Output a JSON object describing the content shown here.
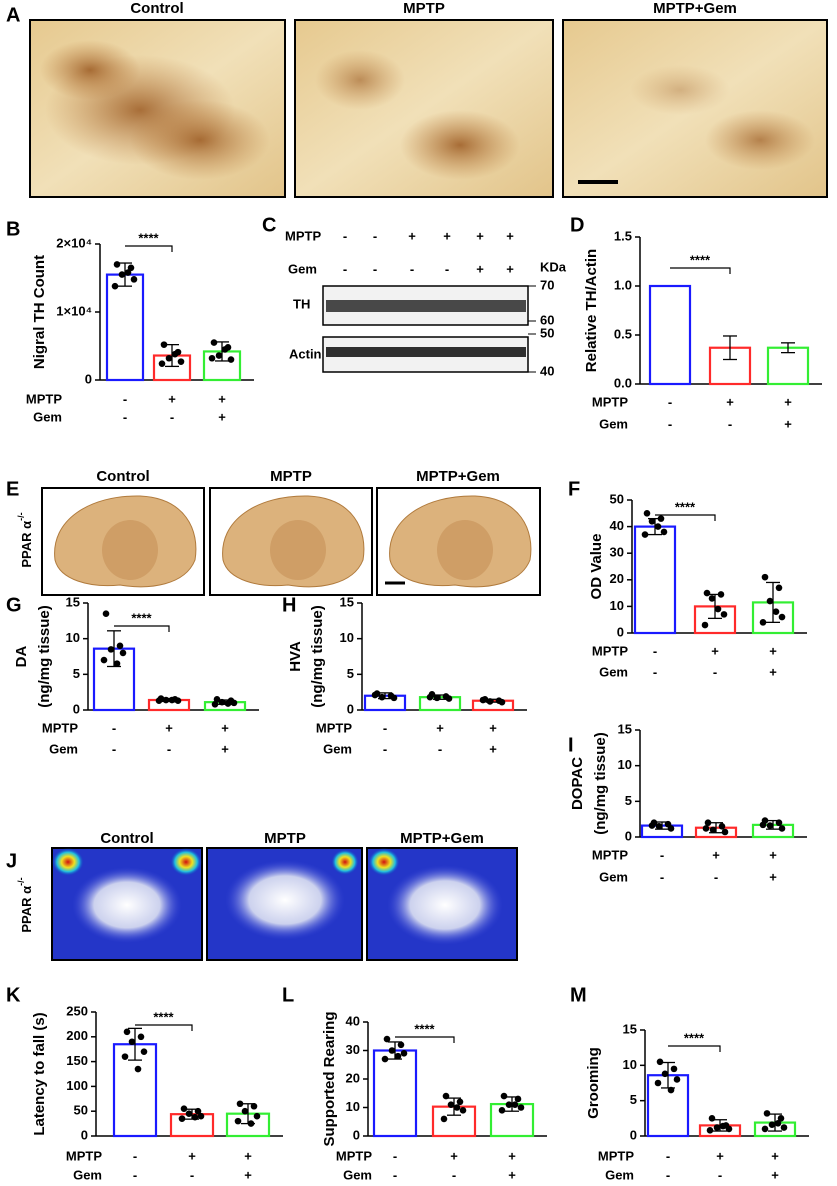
{
  "panel_letters": [
    "A",
    "B",
    "C",
    "D",
    "E",
    "F",
    "G",
    "H",
    "I",
    "J",
    "K",
    "L",
    "M"
  ],
  "images_a": {
    "titles": [
      "Control",
      "MPTP",
      "MPTP+Gem"
    ]
  },
  "images_e": {
    "titles": [
      "Control",
      "MPTP",
      "MPTP+Gem"
    ],
    "genotype": {
      "base": "PPAR α",
      "sup": "-/-"
    }
  },
  "images_j": {
    "titles": [
      "Control",
      "MPTP",
      "MPTP+Gem"
    ],
    "genotype": {
      "base": "PPAR α",
      "sup": "-/-"
    }
  },
  "blot": {
    "rows": [
      {
        "label": "MPTP",
        "signs": [
          "-",
          "-",
          "+",
          "+",
          "+",
          "+"
        ]
      },
      {
        "label": "Gem",
        "signs": [
          "-",
          "-",
          "-",
          "-",
          "+",
          "+"
        ]
      }
    ],
    "unit": "KDa",
    "bands": [
      "TH",
      "Actin"
    ],
    "markers": [
      "70",
      "60",
      "50",
      "40"
    ]
  },
  "chart_data": [
    {
      "type": "bar",
      "ylabel": [
        "Nigral TH Count"
      ],
      "ylim": [
        0,
        20000
      ],
      "yticks": [
        0,
        {
          "value": 10000,
          "label": "1×10⁴"
        },
        {
          "value": 20000,
          "label": "2×10⁴"
        }
      ],
      "values": [
        15500,
        3600,
        4200
      ],
      "errors": [
        1700,
        1600,
        1400
      ],
      "colors": [
        "#1a1aff",
        "#ff2a2a",
        "#33ee33"
      ],
      "points": [
        [
          17000,
          16500,
          15500,
          14800,
          13800,
          15800
        ],
        [
          5200,
          4100,
          3200,
          2700,
          2400,
          3800
        ],
        [
          5500,
          4800,
          3600,
          3000,
          3200,
          4500
        ]
      ],
      "significance": "****",
      "conditions": [
        {
          "name": "MPTP",
          "signs": [
            "-",
            "+",
            "+"
          ]
        },
        {
          "name": "Gem",
          "signs": [
            "-",
            "-",
            "+"
          ]
        }
      ]
    },
    {
      "type": "bar",
      "ylabel": [
        "Relative TH/Actin"
      ],
      "ylim": [
        0,
        1.5
      ],
      "yticks": [
        {
          "value": 0,
          "label": "0.0"
        },
        0.5,
        {
          "value": 1,
          "label": "1.0"
        },
        1.5
      ],
      "values": [
        1.0,
        0.37,
        0.37
      ],
      "errors": [
        0,
        0.12,
        0.05
      ],
      "colors": [
        "#1a1aff",
        "#ff2a2a",
        "#33ee33"
      ],
      "points": [
        [],
        [],
        []
      ],
      "significance": "****",
      "conditions": [
        {
          "name": "MPTP",
          "signs": [
            "-",
            "+",
            "+"
          ]
        },
        {
          "name": "Gem",
          "signs": [
            "-",
            "-",
            "+"
          ]
        }
      ]
    },
    {
      "type": "bar",
      "ylabel": [
        "OD Value"
      ],
      "ylim": [
        0,
        50
      ],
      "yticks": [
        0,
        10,
        20,
        30,
        40,
        50
      ],
      "values": [
        40,
        10,
        11.5
      ],
      "errors": [
        3,
        4.5,
        7.5
      ],
      "colors": [
        "#1a1aff",
        "#ff2a2a",
        "#33ee33"
      ],
      "points": [
        [
          45,
          43,
          42,
          38,
          37,
          40
        ],
        [
          15,
          14.5,
          13,
          7,
          3,
          9
        ],
        [
          21,
          17,
          12,
          6,
          4,
          8
        ]
      ],
      "significance": "****",
      "conditions": [
        {
          "name": "MPTP",
          "signs": [
            "-",
            "+",
            "+"
          ]
        },
        {
          "name": "Gem",
          "signs": [
            "-",
            "-",
            "+"
          ]
        }
      ]
    },
    {
      "type": "bar",
      "ylabel": [
        "DA",
        "(ng/mg tissue)"
      ],
      "ylim": [
        0,
        15
      ],
      "yticks": [
        0,
        5,
        10,
        15
      ],
      "values": [
        8.6,
        1.4,
        1.1
      ],
      "errors": [
        2.5,
        0.2,
        0.3
      ],
      "colors": [
        "#1a1aff",
        "#ff2a2a",
        "#33ee33"
      ],
      "points": [
        [
          13.5,
          9,
          8.5,
          8,
          7,
          6.5
        ],
        [
          1.6,
          1.5,
          1.4,
          1.3,
          1.3,
          1.4
        ],
        [
          1.5,
          1.3,
          1.1,
          1.0,
          0.8,
          0.9
        ]
      ],
      "significance": "****",
      "conditions": [
        {
          "name": "MPTP",
          "signs": [
            "-",
            "+",
            "+"
          ]
        },
        {
          "name": "Gem",
          "signs": [
            "-",
            "-",
            "+"
          ]
        }
      ]
    },
    {
      "type": "bar",
      "ylabel": [
        "HVA",
        "(ng/mg tissue)"
      ],
      "ylim": [
        0,
        15
      ],
      "yticks": [
        0,
        5,
        10,
        15
      ],
      "values": [
        2.0,
        1.8,
        1.3
      ],
      "errors": [
        0.4,
        0.3,
        0.2
      ],
      "colors": [
        "#1a1aff",
        "#33ee33",
        "#ff2a2a"
      ],
      "points": [
        [
          2.3,
          2.0,
          1.8,
          1.7,
          2.1
        ],
        [
          2.2,
          1.9,
          1.7,
          1.6,
          1.8
        ],
        [
          1.5,
          1.3,
          1.2,
          1.1,
          1.4
        ]
      ],
      "conditions": [
        {
          "name": "MPTP",
          "signs": [
            "-",
            "+",
            "+"
          ]
        },
        {
          "name": "Gem",
          "signs": [
            "-",
            "-",
            "+"
          ]
        }
      ]
    },
    {
      "type": "bar",
      "ylabel": [
        "DOPAC",
        "(ng/mg tissue)"
      ],
      "ylim": [
        0,
        15
      ],
      "yticks": [
        0,
        5,
        10,
        15
      ],
      "values": [
        1.6,
        1.3,
        1.7
      ],
      "errors": [
        0.5,
        0.7,
        0.6
      ],
      "colors": [
        "#1a1aff",
        "#ff2a2a",
        "#33ee33"
      ],
      "points": [
        [
          2.0,
          1.8,
          1.5,
          1.2,
          1.6
        ],
        [
          2.0,
          1.5,
          1.0,
          0.7,
          1.2
        ],
        [
          2.3,
          2.0,
          1.6,
          1.2,
          1.7
        ]
      ],
      "conditions": [
        {
          "name": "MPTP",
          "signs": [
            "-",
            "+",
            "+"
          ]
        },
        {
          "name": "Gem",
          "signs": [
            "-",
            "-",
            "+"
          ]
        }
      ]
    },
    {
      "type": "bar",
      "ylabel": [
        "Latency to fall (s)"
      ],
      "ylim": [
        0,
        250
      ],
      "yticks": [
        0,
        50,
        100,
        150,
        200,
        250
      ],
      "values": [
        185,
        44,
        45
      ],
      "errors": [
        32,
        10,
        20
      ],
      "colors": [
        "#1a1aff",
        "#ff2a2a",
        "#33ee33"
      ],
      "points": [
        [
          210,
          200,
          190,
          170,
          160,
          135
        ],
        [
          55,
          50,
          45,
          40,
          35,
          38
        ],
        [
          65,
          60,
          50,
          40,
          30,
          25
        ]
      ],
      "significance": "****",
      "conditions": [
        {
          "name": "MPTP",
          "signs": [
            "-",
            "+",
            "+"
          ]
        },
        {
          "name": "Gem",
          "signs": [
            "-",
            "-",
            "+"
          ]
        }
      ]
    },
    {
      "type": "bar",
      "ylabel": [
        "Supported Rearing"
      ],
      "ylim": [
        0,
        40
      ],
      "yticks": [
        0,
        10,
        20,
        30,
        40
      ],
      "values": [
        30,
        10.3,
        11.2
      ],
      "errors": [
        3,
        3,
        2.5
      ],
      "colors": [
        "#1a1aff",
        "#ff2a2a",
        "#33ee33"
      ],
      "points": [
        [
          34,
          32,
          30,
          29,
          27,
          28
        ],
        [
          14,
          12,
          11,
          9,
          6,
          10
        ],
        [
          14,
          13,
          11,
          10,
          9,
          11
        ]
      ],
      "significance": "****",
      "conditions": [
        {
          "name": "MPTP",
          "signs": [
            "-",
            "+",
            "+"
          ]
        },
        {
          "name": "Gem",
          "signs": [
            "-",
            "-",
            "+"
          ]
        }
      ]
    },
    {
      "type": "bar",
      "ylabel": [
        "Grooming"
      ],
      "ylim": [
        0,
        15
      ],
      "yticks": [
        0,
        5,
        10,
        15
      ],
      "values": [
        8.6,
        1.5,
        1.9
      ],
      "errors": [
        1.8,
        0.8,
        1.2
      ],
      "colors": [
        "#1a1aff",
        "#ff2a2a",
        "#33ee33"
      ],
      "points": [
        [
          10.5,
          9.5,
          8.8,
          8,
          7.5,
          6.5
        ],
        [
          2.5,
          1.5,
          1.2,
          1.0,
          0.8,
          1.4
        ],
        [
          3.2,
          2.5,
          1.6,
          1.2,
          1.0,
          1.8
        ]
      ],
      "significance": "****",
      "conditions": [
        {
          "name": "MPTP",
          "signs": [
            "-",
            "+",
            "+"
          ]
        },
        {
          "name": "Gem",
          "signs": [
            "-",
            "-",
            "+"
          ]
        }
      ]
    }
  ]
}
